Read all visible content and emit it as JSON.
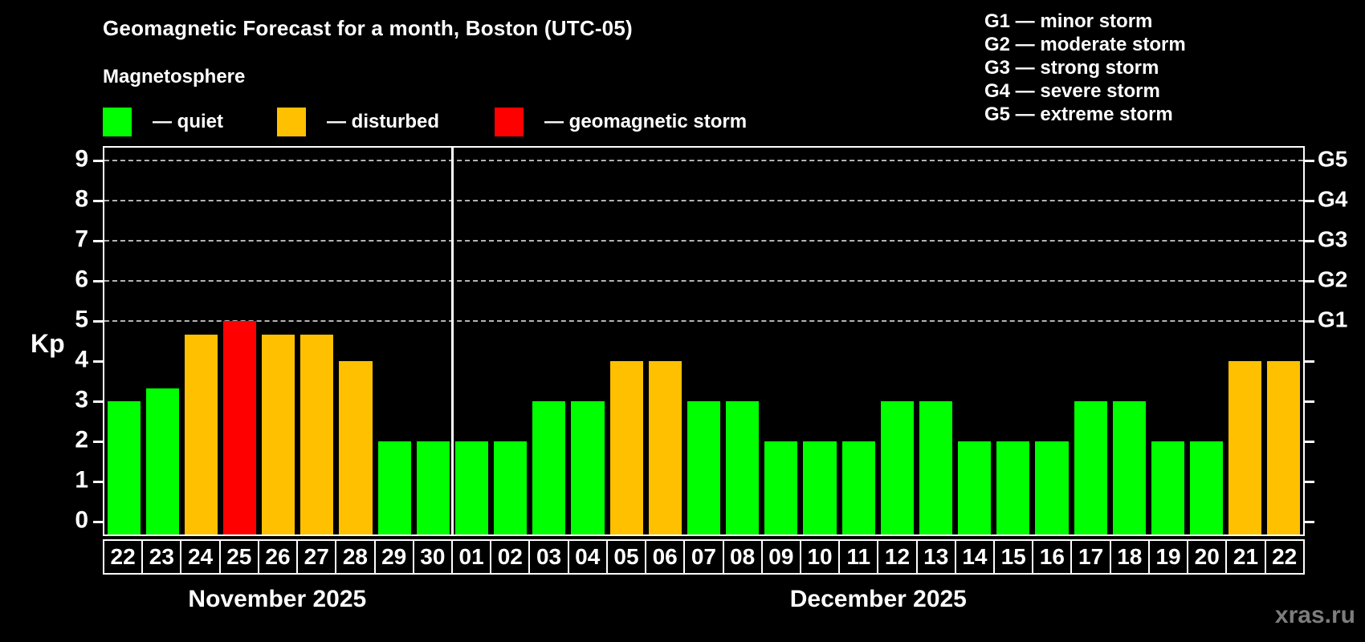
{
  "title": "Geomagnetic Forecast for a month, Boston (UTC-05)",
  "subtitle": "Magnetosphere",
  "legend": {
    "items": [
      {
        "name": "quiet",
        "label": "— quiet",
        "color": "#00ff00",
        "x": 128
      },
      {
        "name": "disturbed",
        "label": "— disturbed",
        "color": "#ffc000",
        "x": 345
      },
      {
        "name": "storm",
        "label": "— geomagnetic storm",
        "color": "#ff0000",
        "x": 616
      }
    ]
  },
  "g_legend": {
    "items": [
      "G1 — minor storm",
      "G2 — moderate storm",
      "G3 — strong storm",
      "G4 — severe storm",
      "G5 — extreme storm"
    ]
  },
  "watermark": "xras.ru",
  "chart_data": {
    "type": "bar",
    "title": "Geomagnetic Forecast for a month, Boston (UTC-05)",
    "ylabel": "Kp",
    "ylim": [
      0,
      9.4
    ],
    "y_ticks": [
      0,
      1,
      2,
      3,
      4,
      5,
      6,
      7,
      8,
      9
    ],
    "grid_levels": [
      5,
      6,
      7,
      8,
      9
    ],
    "right_axis_labels": [
      {
        "kp": 5,
        "label": "G1"
      },
      {
        "kp": 6,
        "label": "G2"
      },
      {
        "kp": 7,
        "label": "G3"
      },
      {
        "kp": 8,
        "label": "G4"
      },
      {
        "kp": 9,
        "label": "G5"
      }
    ],
    "status_colors": {
      "quiet": "#00ff00",
      "disturbed": "#ffc000",
      "storm": "#ff0000"
    },
    "months": [
      {
        "label": "November 2025",
        "days": [
          {
            "day": "22",
            "kp": 3.0,
            "status": "quiet"
          },
          {
            "day": "23",
            "kp": 3.33,
            "status": "quiet"
          },
          {
            "day": "24",
            "kp": 4.67,
            "status": "disturbed"
          },
          {
            "day": "25",
            "kp": 5.0,
            "status": "storm"
          },
          {
            "day": "26",
            "kp": 4.67,
            "status": "disturbed"
          },
          {
            "day": "27",
            "kp": 4.67,
            "status": "disturbed"
          },
          {
            "day": "28",
            "kp": 4.0,
            "status": "disturbed"
          },
          {
            "day": "29",
            "kp": 2.0,
            "status": "quiet"
          },
          {
            "day": "30",
            "kp": 2.0,
            "status": "quiet"
          }
        ]
      },
      {
        "label": "December 2025",
        "days": [
          {
            "day": "01",
            "kp": 2.0,
            "status": "quiet"
          },
          {
            "day": "02",
            "kp": 2.0,
            "status": "quiet"
          },
          {
            "day": "03",
            "kp": 3.0,
            "status": "quiet"
          },
          {
            "day": "04",
            "kp": 3.0,
            "status": "quiet"
          },
          {
            "day": "05",
            "kp": 4.0,
            "status": "disturbed"
          },
          {
            "day": "06",
            "kp": 4.0,
            "status": "disturbed"
          },
          {
            "day": "07",
            "kp": 3.0,
            "status": "quiet"
          },
          {
            "day": "08",
            "kp": 3.0,
            "status": "quiet"
          },
          {
            "day": "09",
            "kp": 2.0,
            "status": "quiet"
          },
          {
            "day": "10",
            "kp": 2.0,
            "status": "quiet"
          },
          {
            "day": "11",
            "kp": 2.0,
            "status": "quiet"
          },
          {
            "day": "12",
            "kp": 3.0,
            "status": "quiet"
          },
          {
            "day": "13",
            "kp": 3.0,
            "status": "quiet"
          },
          {
            "day": "14",
            "kp": 2.0,
            "status": "quiet"
          },
          {
            "day": "15",
            "kp": 2.0,
            "status": "quiet"
          },
          {
            "day": "16",
            "kp": 2.0,
            "status": "quiet"
          },
          {
            "day": "17",
            "kp": 3.0,
            "status": "quiet"
          },
          {
            "day": "18",
            "kp": 3.0,
            "status": "quiet"
          },
          {
            "day": "19",
            "kp": 2.0,
            "status": "quiet"
          },
          {
            "day": "20",
            "kp": 2.0,
            "status": "quiet"
          },
          {
            "day": "21",
            "kp": 4.0,
            "status": "disturbed"
          },
          {
            "day": "22",
            "kp": 4.0,
            "status": "disturbed"
          }
        ]
      }
    ]
  }
}
